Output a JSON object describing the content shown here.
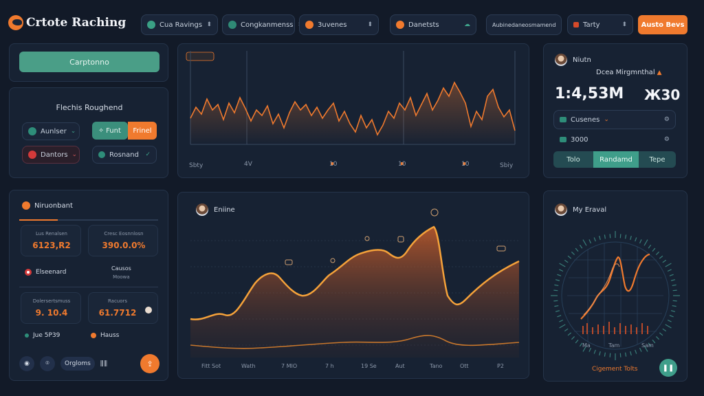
{
  "header": {
    "brand": "Crtote Raching",
    "pills": [
      {
        "label": "Cua Ravings",
        "icon": "globe-icon"
      },
      {
        "label": "Congkanmenss",
        "icon": "cloud-icon"
      },
      {
        "label": "3uvenes",
        "icon": "fire-icon"
      },
      {
        "label": "Danetsts",
        "icon": "flame-icon"
      },
      {
        "label": "Aubinedaneosmamend",
        "icon": "list-icon"
      },
      {
        "label": "Tarty",
        "icon": "flag-icon"
      }
    ],
    "cta": "Austo Bevs"
  },
  "left_top": {
    "button": "Carptonno"
  },
  "left_mid": {
    "title": "Flechis Roughend",
    "items": [
      {
        "label": "Aunlser",
        "icon": "globe-icon"
      },
      {
        "label": "Funt",
        "icon": "leaf-icon"
      },
      {
        "label": "Frinel"
      },
      {
        "label": "Dantors",
        "icon": "record-icon"
      },
      {
        "label": "Rosnand",
        "icon": "shield-icon"
      }
    ]
  },
  "chart_top": {
    "badge": "",
    "x_labels": [
      "Sbty",
      "4V",
      "10",
      "10",
      "10",
      "Sbiy"
    ]
  },
  "right_top": {
    "name": "Niutn",
    "subtitle": "Dcea Mirgmnthal",
    "value": "1:4,53M",
    "value2": "Ж30",
    "rows": [
      {
        "label": "Cusenes"
      },
      {
        "label": "3000"
      }
    ],
    "tabs": [
      "Tolo",
      "Randamd",
      "Tepe"
    ]
  },
  "left_bottom": {
    "title": "Niruonbant",
    "stats": [
      {
        "label": "Lus Renalsen",
        "value": "6123,R2"
      },
      {
        "label": "Cresc Eosnnlosn",
        "value": "390.0.0%"
      },
      {
        "label": "Elseenard"
      },
      {
        "label": "Causos",
        "sub": "Moowa"
      },
      {
        "label": "Dolersertsmuss",
        "value": "9. 10.4"
      },
      {
        "label": "Racuors",
        "value": "61.7712"
      },
      {
        "label": "Jue 5P39"
      },
      {
        "label": "Hauss"
      }
    ],
    "footer": "Orgloms"
  },
  "chart_main": {
    "title": "Eniine",
    "x_labels": [
      "Fitt Sot",
      "Wath",
      "7 MIO",
      "7 h",
      "19 Se",
      "Aut",
      "Tano",
      "Ott",
      "P2"
    ]
  },
  "chart_radial": {
    "title": "My Eraval",
    "x_labels": [
      "Ma",
      "Tam",
      "Sam"
    ],
    "footer": "Cigement Tolts"
  },
  "colors": {
    "accent": "#f07a2e",
    "teal": "#3f9e8a",
    "panel": "#172233",
    "bg": "#121a28"
  }
}
